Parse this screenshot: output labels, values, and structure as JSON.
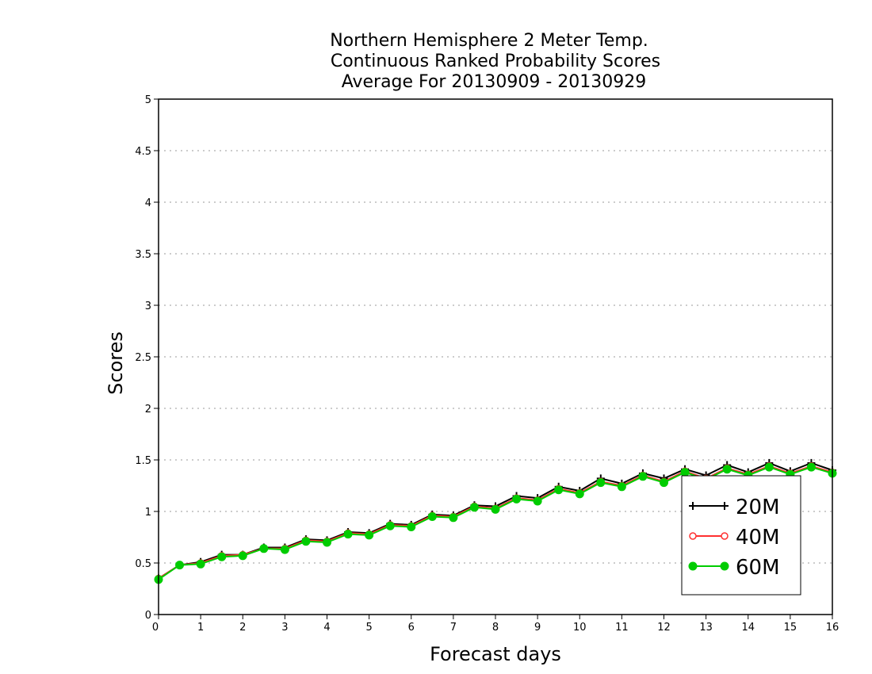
{
  "chart_data": {
    "type": "line",
    "title_lines": [
      "Northern Hemisphere 2 Meter Temp.",
      "Continuous Ranked Probability Scores",
      "Average For 20130909 - 20130929"
    ],
    "xlabel": "Forecast days",
    "ylabel": "Scores",
    "xlim": [
      0,
      16
    ],
    "ylim": [
      0,
      5
    ],
    "x_ticks": [
      "0",
      "1",
      "2",
      "3",
      "4",
      "5",
      "6",
      "7",
      "8",
      "9",
      "10",
      "11",
      "12",
      "13",
      "14",
      "15",
      "16"
    ],
    "y_ticks": [
      "0",
      "0.5",
      "1",
      "1.5",
      "2",
      "2.5",
      "3",
      "3.5",
      "4",
      "4.5",
      "5"
    ],
    "grid": "horizontal dotted",
    "legend_position": "bottom-right",
    "x": [
      0,
      0.5,
      1,
      1.5,
      2,
      2.5,
      3,
      3.5,
      4,
      4.5,
      5,
      5.5,
      6,
      6.5,
      7,
      7.5,
      8,
      8.5,
      9,
      9.5,
      10,
      10.5,
      11,
      11.5,
      12,
      12.5,
      13,
      13.5,
      14,
      14.5,
      15,
      15.5,
      16
    ],
    "series": [
      {
        "name": "20M",
        "color": "#000000",
        "marker": "plus",
        "values": [
          0.35,
          0.48,
          0.51,
          0.58,
          0.58,
          0.65,
          0.65,
          0.73,
          0.72,
          0.8,
          0.79,
          0.88,
          0.87,
          0.97,
          0.96,
          1.06,
          1.05,
          1.15,
          1.13,
          1.24,
          1.2,
          1.32,
          1.27,
          1.37,
          1.32,
          1.41,
          1.35,
          1.45,
          1.38,
          1.47,
          1.39,
          1.47,
          1.4
        ]
      },
      {
        "name": "40M",
        "color": "#ff3030",
        "marker": "open-circle",
        "values": [
          0.35,
          0.48,
          0.5,
          0.57,
          0.58,
          0.64,
          0.64,
          0.72,
          0.71,
          0.79,
          0.78,
          0.87,
          0.86,
          0.96,
          0.95,
          1.05,
          1.03,
          1.13,
          1.11,
          1.22,
          1.18,
          1.29,
          1.25,
          1.35,
          1.29,
          1.39,
          1.32,
          1.42,
          1.36,
          1.44,
          1.37,
          1.44,
          1.38
        ]
      },
      {
        "name": "60M",
        "color": "#00cc00",
        "marker": "filled-circle",
        "values": [
          0.34,
          0.48,
          0.49,
          0.56,
          0.57,
          0.64,
          0.63,
          0.71,
          0.7,
          0.78,
          0.77,
          0.86,
          0.85,
          0.95,
          0.94,
          1.04,
          1.02,
          1.12,
          1.1,
          1.21,
          1.17,
          1.28,
          1.24,
          1.34,
          1.28,
          1.38,
          1.31,
          1.41,
          1.35,
          1.43,
          1.36,
          1.43,
          1.37
        ]
      }
    ]
  }
}
